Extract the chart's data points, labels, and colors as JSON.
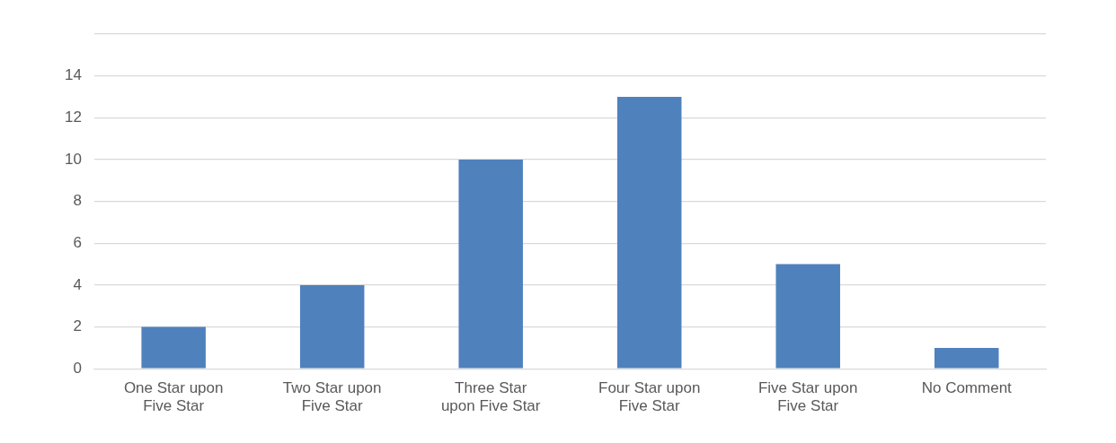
{
  "chart_data": {
    "type": "bar",
    "categories": [
      "One Star upon Five Star",
      "Two Star upon Five Star",
      "Three Star upon Five Star",
      "Four Star upon Five Star",
      "Five Star upon Five Star",
      "No Comment"
    ],
    "values": [
      2,
      4,
      10,
      13,
      5,
      1
    ],
    "color": "#4f81bd",
    "ylim": [
      0,
      16
    ],
    "yticks": [
      0,
      2,
      4,
      6,
      8,
      10,
      12,
      14,
      {
        "value": 16,
        "label": null
      }
    ],
    "grid": "y",
    "legend": false
  }
}
